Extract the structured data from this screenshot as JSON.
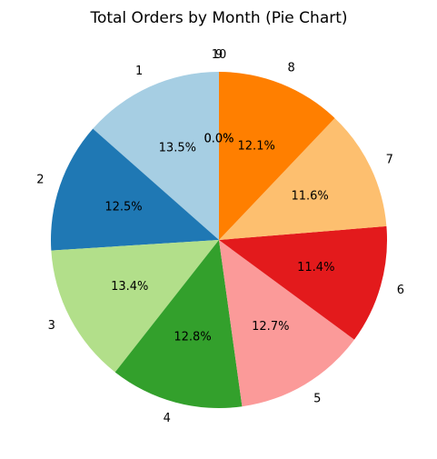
{
  "chart_data": {
    "type": "pie",
    "title": "Total Orders by Month (Pie Chart)",
    "start_angle_deg": 90,
    "direction": "counterclockwise",
    "slices": [
      {
        "label": "1",
        "value": 13.5,
        "pct_text": "13.5%",
        "color": "#a6cee3"
      },
      {
        "label": "2",
        "value": 12.5,
        "pct_text": "12.5%",
        "color": "#1f78b4"
      },
      {
        "label": "3",
        "value": 13.4,
        "pct_text": "13.4%",
        "color": "#b2df8a"
      },
      {
        "label": "4",
        "value": 12.8,
        "pct_text": "12.8%",
        "color": "#33a02c"
      },
      {
        "label": "5",
        "value": 12.7,
        "pct_text": "12.7%",
        "color": "#fb9a99"
      },
      {
        "label": "6",
        "value": 11.4,
        "pct_text": "11.4%",
        "color": "#e31a1c"
      },
      {
        "label": "7",
        "value": 11.6,
        "pct_text": "11.6%",
        "color": "#fdbf6f"
      },
      {
        "label": "8",
        "value": 12.1,
        "pct_text": "12.1%",
        "color": "#ff7f00"
      },
      {
        "label": "9",
        "value": 0.0,
        "pct_text": "0.0%",
        "color": "#cab2d6"
      },
      {
        "label": "10",
        "value": 0.0,
        "pct_text": "0.0%",
        "color": "#6a3d9a"
      }
    ]
  }
}
